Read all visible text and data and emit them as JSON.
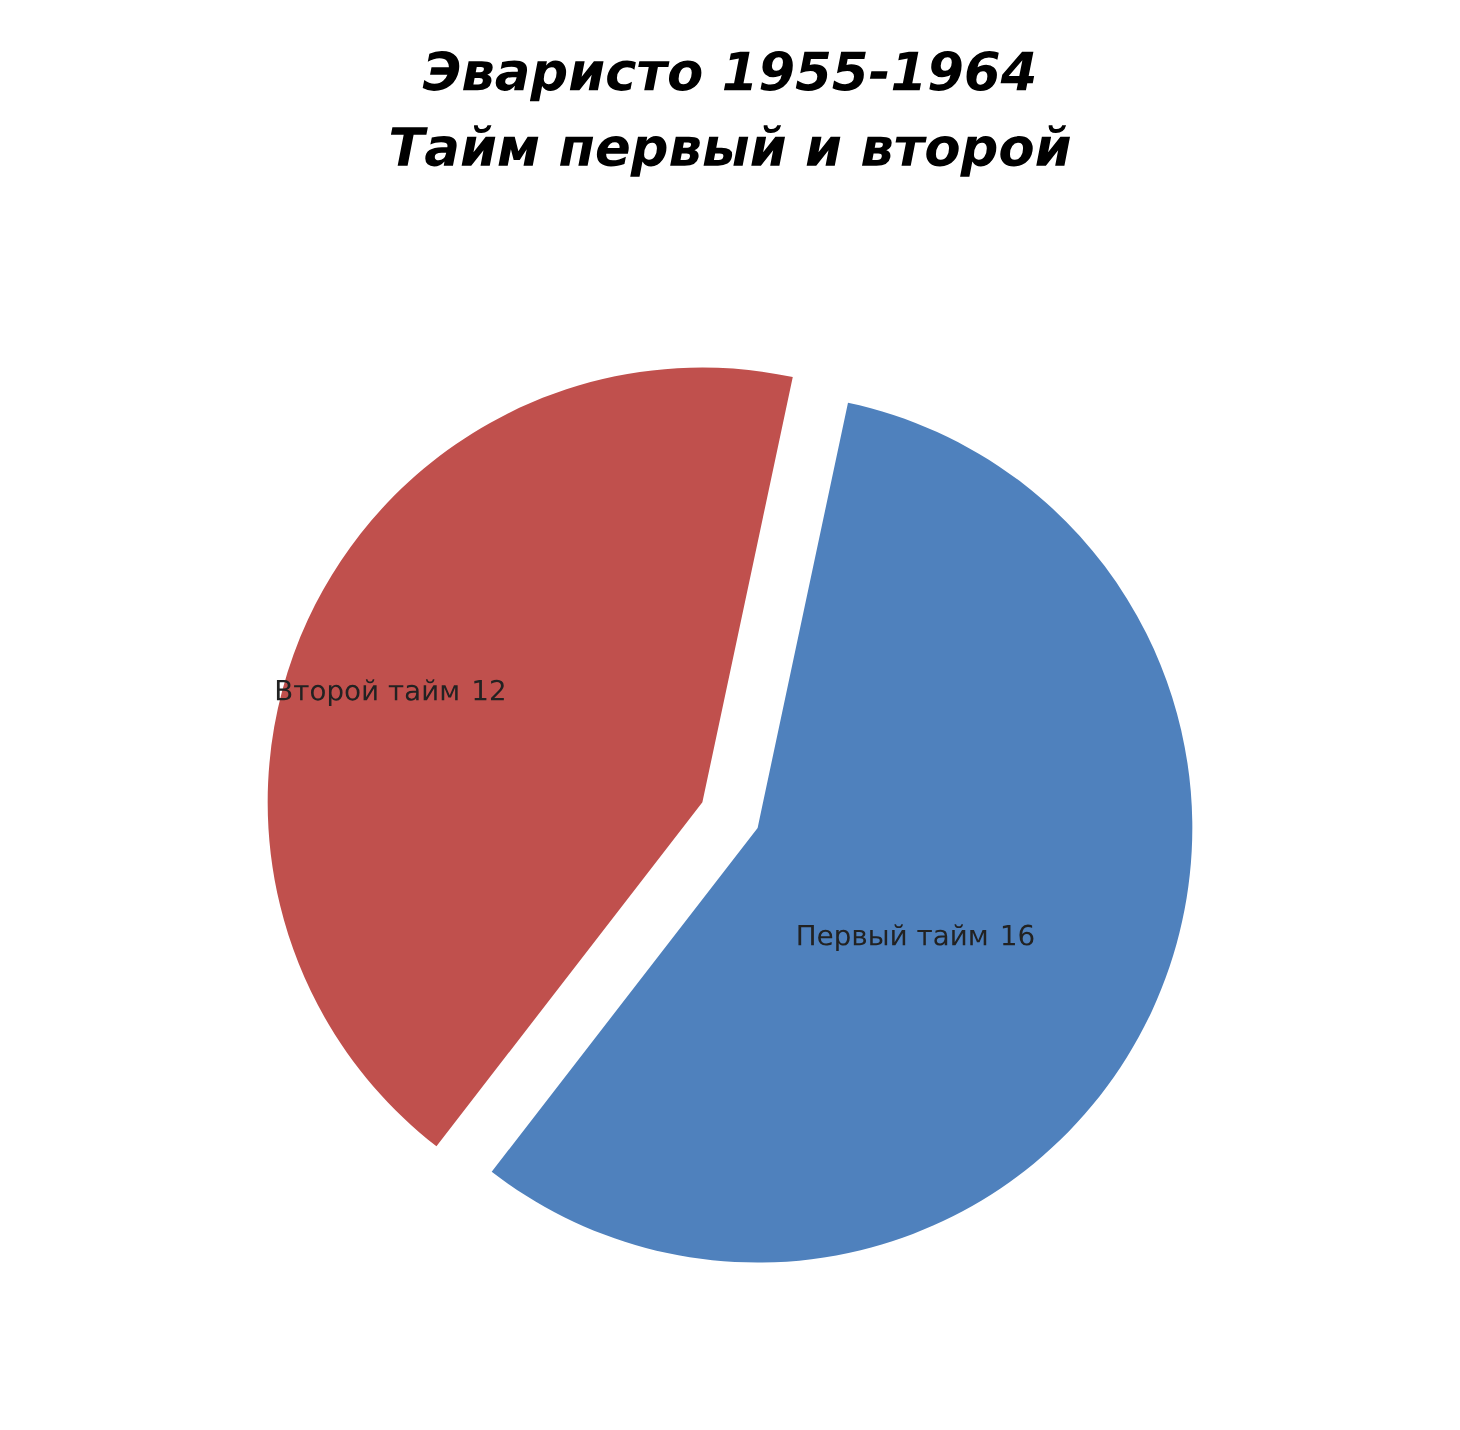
{
  "chart_data": {
    "type": "pie",
    "title": "Эваристо 1955-1964\nТайм первый и второй",
    "categories": [
      "Первый тайм",
      "Второй тайм"
    ],
    "values": [
      16,
      12
    ],
    "colors": [
      "#4f81bd",
      "#c0504d"
    ],
    "data_labels": true,
    "legend": false
  }
}
